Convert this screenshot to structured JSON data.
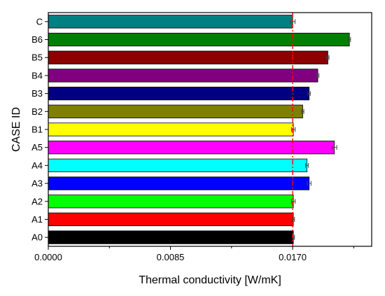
{
  "chart_data": {
    "type": "bar",
    "orientation": "horizontal",
    "categories": [
      "C",
      "B6",
      "B5",
      "B4",
      "B3",
      "B2",
      "B1",
      "A5",
      "A4",
      "A3",
      "A2",
      "A1",
      "A0"
    ],
    "values": [
      0.017,
      0.02095,
      0.01945,
      0.01875,
      0.01815,
      0.0177,
      0.01705,
      0.0199,
      0.018,
      0.01815,
      0.01705,
      0.01705,
      0.01705
    ],
    "errors": [
      0.00017,
      8e-05,
      8e-05,
      8e-05,
      8e-05,
      8e-05,
      0.00013,
      0.00017,
      0.0001,
      0.00013,
      0.00013,
      8e-05,
      8e-05
    ],
    "colors": [
      "#008080",
      "#008000",
      "#8b0000",
      "#800080",
      "#000080",
      "#808000",
      "#ffff00",
      "#ff00ff",
      "#00ffff",
      "#0000ff",
      "#00ff00",
      "#ff0000",
      "#000000"
    ],
    "reference_line": {
      "value": 0.017,
      "color": "#ff0000",
      "style": "dash-dot"
    },
    "xlabel": "Thermal conductivity [W/mK]",
    "ylabel": "CASE ID",
    "xlim": [
      0,
      0.0225
    ],
    "xticks": [
      0.0,
      0.0085,
      0.017
    ],
    "xtick_labels": [
      "0.0000",
      "0.0085",
      "0.0170"
    ],
    "grid": false,
    "legend": "none"
  }
}
